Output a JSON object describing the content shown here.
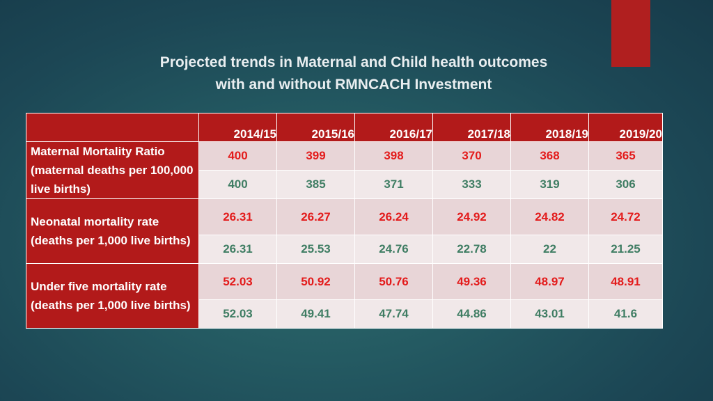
{
  "title": {
    "line1": "Projected trends in Maternal and Child health outcomes",
    "line2": "with and without RMNCACH Investment"
  },
  "colors": {
    "header_red": "#b21a1a",
    "with_investment_text": "#e31b1b",
    "without_investment_text": "#3f7d63",
    "accent": "#b01f1f"
  },
  "table": {
    "years": [
      "2014/15",
      "2015/16",
      "2016/17",
      "2017/18",
      "2018/19",
      "2019/20"
    ],
    "rows": [
      {
        "label": "Maternal Mortality Ratio (maternal deaths per 100,000 live births)",
        "with_investment": [
          "400",
          "399",
          "398",
          "370",
          "368",
          "365"
        ],
        "without_investment": [
          "400",
          "385",
          "371",
          "333",
          "319",
          "306"
        ]
      },
      {
        "label": "Neonatal mortality rate (deaths per 1,000 live births)",
        "with_investment": [
          "26.31",
          "26.27",
          "26.24",
          "24.92",
          "24.82",
          "24.72"
        ],
        "without_investment": [
          "26.31",
          "25.53",
          "24.76",
          "22.78",
          "22",
          "21.25"
        ]
      },
      {
        "label": "Under five mortality rate (deaths per 1,000 live births)",
        "with_investment": [
          "52.03",
          "50.92",
          "50.76",
          "49.36",
          "48.97",
          "48.91"
        ],
        "without_investment": [
          "52.03",
          "49.41",
          "47.74",
          "44.86",
          "43.01",
          "41.6"
        ]
      }
    ]
  }
}
